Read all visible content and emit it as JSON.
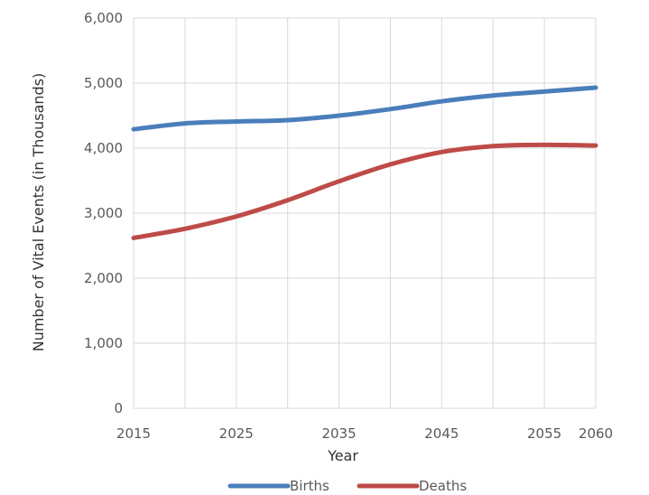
{
  "chart_data": {
    "type": "line",
    "title": "",
    "xlabel": "Year",
    "ylabel": "Number of Vital Events (in Thousands)",
    "xlim": [
      2015,
      2060
    ],
    "ylim": [
      0,
      6000
    ],
    "x_ticks": [
      "2015",
      "2025",
      "2035",
      "2045",
      "2055",
      "2060"
    ],
    "y_ticks": [
      "0",
      "1,000",
      "2,000",
      "3,000",
      "4,000",
      "5,000",
      "6,000"
    ],
    "grid": true,
    "legend_position": "bottom",
    "x": [
      2015,
      2020,
      2025,
      2030,
      2035,
      2040,
      2045,
      2050,
      2055,
      2060
    ],
    "series": [
      {
        "name": "Births",
        "color": "#4A7EBB",
        "values": [
          4290,
          4380,
          4410,
          4430,
          4500,
          4600,
          4720,
          4810,
          4870,
          4930
        ]
      },
      {
        "name": "Deaths",
        "color": "#BE4B48",
        "values": [
          2620,
          2760,
          2950,
          3200,
          3490,
          3750,
          3940,
          4030,
          4050,
          4040
        ]
      }
    ]
  }
}
